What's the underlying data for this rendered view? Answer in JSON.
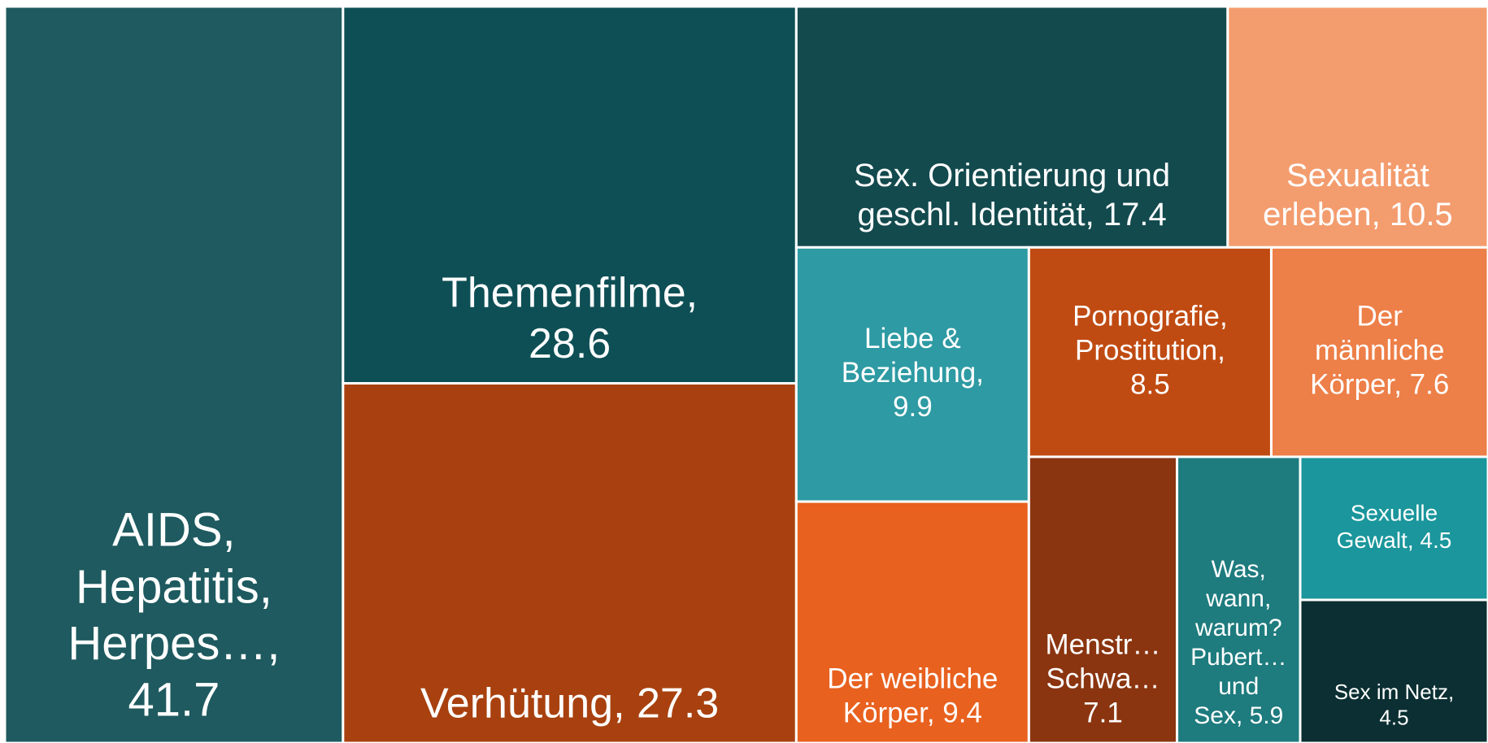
{
  "chart_data": {
    "type": "treemap",
    "labels": [
      [
        "AIDS,",
        "Hepatitis,",
        "Herpes…,",
        "41.7"
      ],
      [
        "Themenfilme,",
        "28.6"
      ],
      [
        "Verhütung, 27.3"
      ],
      [
        "Sex. Orientierung und",
        "geschl. Identität, 17.4"
      ],
      [
        "Sexualität",
        "erleben, 10.5"
      ],
      [
        "Liebe &",
        "Beziehung,",
        "9.9"
      ],
      [
        "Der weibliche",
        "Körper, 9.4"
      ],
      [
        "Pornografie,",
        "Prostitution,",
        "8.5"
      ],
      [
        "Der",
        "männliche",
        "Körper, 7.6"
      ],
      [
        "Menstr…",
        "Schwa…",
        "7.1"
      ],
      [
        "Was,",
        "wann,",
        "warum?",
        "Pubert…",
        "und",
        "Sex, 5.9"
      ],
      [
        "Sexuelle",
        "Gewalt, 4.5"
      ],
      [
        "Sex im Netz,",
        "4.5"
      ]
    ],
    "values": [
      41.7,
      28.6,
      27.3,
      17.4,
      10.5,
      9.9,
      9.4,
      8.5,
      7.6,
      7.1,
      5.9,
      4.5,
      4.5
    ],
    "colors": [
      "#1e5a5f",
      "#0d4f55",
      "#a8410f",
      "#134a4e",
      "#f39c6e",
      "#2e9aa3",
      "#e8611f",
      "#c04b12",
      "#ed7f48",
      "#8a3510",
      "#1e7b7e",
      "#1a969c",
      "#0b2f32"
    ]
  }
}
